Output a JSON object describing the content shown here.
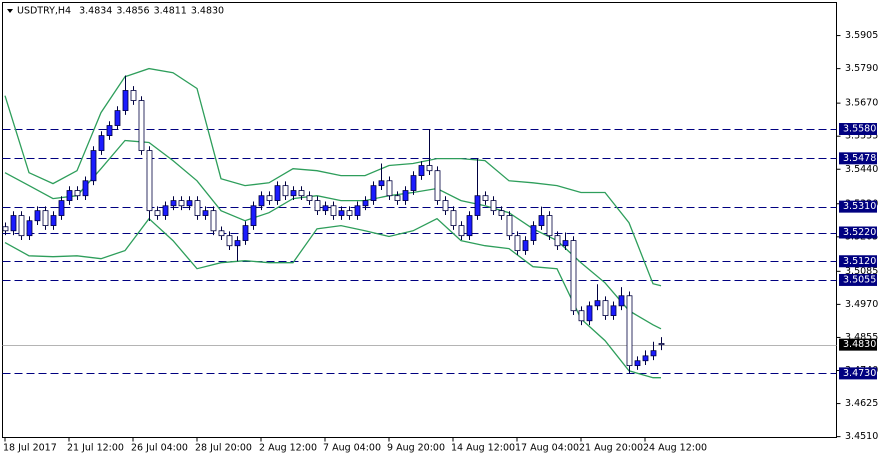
{
  "chart_data": {
    "type": "candlestick",
    "title": "USDTRY,H4",
    "quote": [
      "3.4834",
      "3.4856",
      "3.4811",
      "3.4830"
    ],
    "categories": [
      "18 Jul 2017",
      null,
      null,
      null,
      null,
      null,
      null,
      null,
      "21 Jul 12:00",
      null,
      null,
      null,
      null,
      null,
      null,
      null,
      "26 Jul 04:00",
      null,
      null,
      null,
      null,
      null,
      null,
      null,
      "28 Jul 20:00",
      null,
      null,
      null,
      null,
      null,
      null,
      null,
      "2 Aug 12:00",
      null,
      null,
      null,
      null,
      null,
      null,
      null,
      "7 Aug 04:00",
      null,
      null,
      null,
      null,
      null,
      null,
      null,
      "9 Aug 20:00",
      null,
      null,
      null,
      null,
      null,
      null,
      null,
      "14 Aug 12:00",
      null,
      null,
      null,
      null,
      null,
      null,
      null,
      "17 Aug 04:00",
      null,
      null,
      null,
      null,
      null,
      null,
      null,
      "21 Aug 20:00",
      null,
      null,
      null,
      null,
      null,
      null,
      null,
      "24 Aug 12:00",
      null,
      null
    ],
    "open": [
      3.524,
      3.5226,
      3.5279,
      3.5209,
      3.5261,
      3.5296,
      3.5244,
      3.5279,
      3.5331,
      3.5366,
      3.5348,
      3.54,
      3.5505,
      3.5557,
      3.5592,
      3.5644,
      3.5714,
      3.5679,
      3.5505,
      3.5296,
      3.5279,
      3.5313,
      3.5331,
      3.5313,
      3.5331,
      3.5279,
      3.5296,
      3.5226,
      3.5209,
      3.5174,
      3.5192,
      3.5244,
      3.5313,
      3.5348,
      3.5331,
      3.5383,
      3.5348,
      3.5366,
      3.5348,
      3.5331,
      3.5296,
      3.5313,
      3.5279,
      3.5296,
      3.5279,
      3.5313,
      3.5331,
      3.5383,
      3.54,
      3.5348,
      3.5331,
      3.5366,
      3.5418,
      3.5453,
      3.5435,
      3.5331,
      3.5296,
      3.5244,
      3.5209,
      3.5279,
      3.5348,
      3.5331,
      3.5296,
      3.5279,
      3.5209,
      3.5157,
      3.5192,
      3.5244,
      3.5279,
      3.5209,
      3.5174,
      3.5192,
      3.4948,
      3.4913,
      3.4965,
      3.4983,
      3.4931,
      3.4965,
      3.5,
      3.4757,
      3.4774,
      3.4791,
      3.4834
    ],
    "high": [
      3.5255,
      3.5294,
      3.5294,
      3.5276,
      3.5311,
      3.5311,
      3.5294,
      3.5346,
      3.5381,
      3.5381,
      3.5415,
      3.552,
      3.5572,
      3.5607,
      3.5659,
      3.5766,
      3.5729,
      3.5694,
      3.552,
      3.5311,
      3.5328,
      3.5346,
      3.5346,
      3.5346,
      3.5346,
      3.5311,
      3.5311,
      3.5241,
      3.5224,
      3.5207,
      3.5259,
      3.5328,
      3.5363,
      3.5363,
      3.5398,
      3.5398,
      3.5381,
      3.5381,
      3.5363,
      3.5346,
      3.5328,
      3.5328,
      3.5311,
      3.5311,
      3.5328,
      3.5346,
      3.5398,
      3.546,
      3.5415,
      3.5363,
      3.5381,
      3.5433,
      3.5468,
      3.558,
      3.545,
      3.5346,
      3.5311,
      3.5259,
      3.5294,
      3.5478,
      3.5363,
      3.5346,
      3.5311,
      3.5294,
      3.5224,
      3.5207,
      3.5259,
      3.531,
      3.5294,
      3.5224,
      3.522,
      3.5207,
      3.4963,
      3.498,
      3.504,
      3.4998,
      3.498,
      3.503,
      3.5015,
      3.4789,
      3.481,
      3.484,
      3.4856
    ],
    "low": [
      3.5211,
      3.5211,
      3.5194,
      3.5194,
      3.5246,
      3.5229,
      3.5229,
      3.5264,
      3.5316,
      3.5333,
      3.5333,
      3.5385,
      3.549,
      3.5542,
      3.5577,
      3.5629,
      3.5664,
      3.549,
      3.526,
      3.5264,
      3.5264,
      3.5298,
      3.5298,
      3.5298,
      3.5264,
      3.5264,
      3.5211,
      3.5194,
      3.5159,
      3.512,
      3.5177,
      3.5229,
      3.5298,
      3.5316,
      3.5316,
      3.5333,
      3.5333,
      3.5333,
      3.5316,
      3.5281,
      3.5281,
      3.5264,
      3.5264,
      3.5264,
      3.5264,
      3.5298,
      3.5316,
      3.5368,
      3.5333,
      3.5316,
      3.5316,
      3.5351,
      3.5403,
      3.542,
      3.5316,
      3.5281,
      3.5229,
      3.5194,
      3.5194,
      3.5264,
      3.5316,
      3.5281,
      3.5264,
      3.5194,
      3.5142,
      3.5142,
      3.5177,
      3.5229,
      3.5194,
      3.5159,
      3.5159,
      3.4933,
      3.4898,
      3.4898,
      3.495,
      3.4916,
      3.4916,
      3.495,
      3.473,
      3.4742,
      3.4759,
      3.4776,
      3.4811
    ],
    "close": [
      3.5226,
      3.5279,
      3.5209,
      3.5261,
      3.5296,
      3.5244,
      3.5279,
      3.5331,
      3.5366,
      3.5348,
      3.54,
      3.5505,
      3.5557,
      3.5592,
      3.5644,
      3.5714,
      3.5679,
      3.5505,
      3.5296,
      3.5279,
      3.5313,
      3.5331,
      3.5313,
      3.5331,
      3.5279,
      3.5296,
      3.5226,
      3.5209,
      3.5174,
      3.5192,
      3.5244,
      3.5313,
      3.5348,
      3.5331,
      3.5383,
      3.5348,
      3.5366,
      3.5348,
      3.5331,
      3.5296,
      3.5313,
      3.5279,
      3.5296,
      3.5279,
      3.5313,
      3.5331,
      3.5383,
      3.54,
      3.5348,
      3.5331,
      3.5366,
      3.5418,
      3.5453,
      3.5435,
      3.5331,
      3.5296,
      3.5244,
      3.5209,
      3.5279,
      3.5348,
      3.5331,
      3.5296,
      3.5279,
      3.5209,
      3.5157,
      3.5192,
      3.5244,
      3.5279,
      3.5209,
      3.5174,
      3.5192,
      3.4948,
      3.4913,
      3.4965,
      3.4983,
      3.4931,
      3.4965,
      3.5,
      3.4757,
      3.4774,
      3.4791,
      3.4809,
      3.483
    ],
    "bands": {
      "x": [
        0,
        3,
        6,
        9,
        12,
        15,
        18,
        21,
        24,
        27,
        30,
        33,
        36,
        39,
        42,
        45,
        48,
        51,
        54,
        57,
        60,
        63,
        66,
        69,
        72,
        75,
        78,
        81,
        82
      ],
      "upper": [
        3.5696,
        3.5428,
        3.539,
        3.5435,
        3.5637,
        3.5762,
        3.579,
        3.5776,
        3.5721,
        3.5407,
        3.5383,
        3.5393,
        3.5442,
        3.5435,
        3.5418,
        3.5418,
        3.5453,
        3.546,
        3.5477,
        3.5477,
        3.547,
        3.54,
        3.5393,
        3.5383,
        3.5359,
        3.5359,
        3.5254,
        3.5042,
        3.5035
      ],
      "middle": [
        3.5428,
        3.5383,
        3.5338,
        3.5348,
        3.5442,
        3.554,
        3.5533,
        3.547,
        3.54,
        3.5296,
        3.5261,
        3.5289,
        3.5338,
        3.5348,
        3.5331,
        3.5331,
        3.5348,
        3.5359,
        3.5373,
        3.5331,
        3.5313,
        3.5289,
        3.5233,
        3.5192,
        3.5115,
        3.5045,
        3.4948,
        3.4899,
        3.4885
      ],
      "lower": [
        3.5185,
        3.5139,
        3.5136,
        3.5139,
        3.5129,
        3.5157,
        3.5268,
        3.5192,
        3.5094,
        3.5115,
        3.5122,
        3.5115,
        3.5115,
        3.5233,
        3.5244,
        3.5226,
        3.5206,
        3.5226,
        3.5268,
        3.5192,
        3.5174,
        3.5164,
        3.5101,
        3.5094,
        3.492,
        3.4844,
        3.4739,
        3.4715,
        3.4715
      ]
    },
    "ylim": [
      3.4507,
      3.602
    ],
    "yticks": [
      3.5905,
      {
        "value": 3.579,
        "label": "3.5790"
      },
      {
        "value": 3.567,
        "label": "3.5670"
      },
      3.5555,
      {
        "value": 3.544,
        "label": "3.5440"
      },
      {
        "value": 3.532,
        "label": "3.5320"
      },
      3.5205,
      3.5085,
      {
        "value": 3.497,
        "label": "3.4970"
      },
      3.4855,
      {
        "value": 3.474,
        "label": "3.4740"
      },
      3.4625,
      {
        "value": 3.451,
        "label": "3.4510"
      }
    ],
    "levels": [
      {
        "value": 3.558,
        "label": "3.5580"
      },
      3.5478,
      {
        "value": 3.531,
        "label": "3.5310"
      },
      {
        "value": 3.522,
        "label": "3.5220"
      },
      {
        "value": 3.512,
        "label": "3.5120"
      },
      3.5055,
      {
        "value": 3.473,
        "label": "3.4730"
      }
    ],
    "current_price": {
      "value": 3.483,
      "label": "3.4830"
    },
    "up_color": "#1c1cff",
    "down_color": "#ffffff",
    "wick_color": "#000040",
    "band_color": "#2e9e5b",
    "level_color": "#000080",
    "current_color": "#b4b4b4"
  }
}
